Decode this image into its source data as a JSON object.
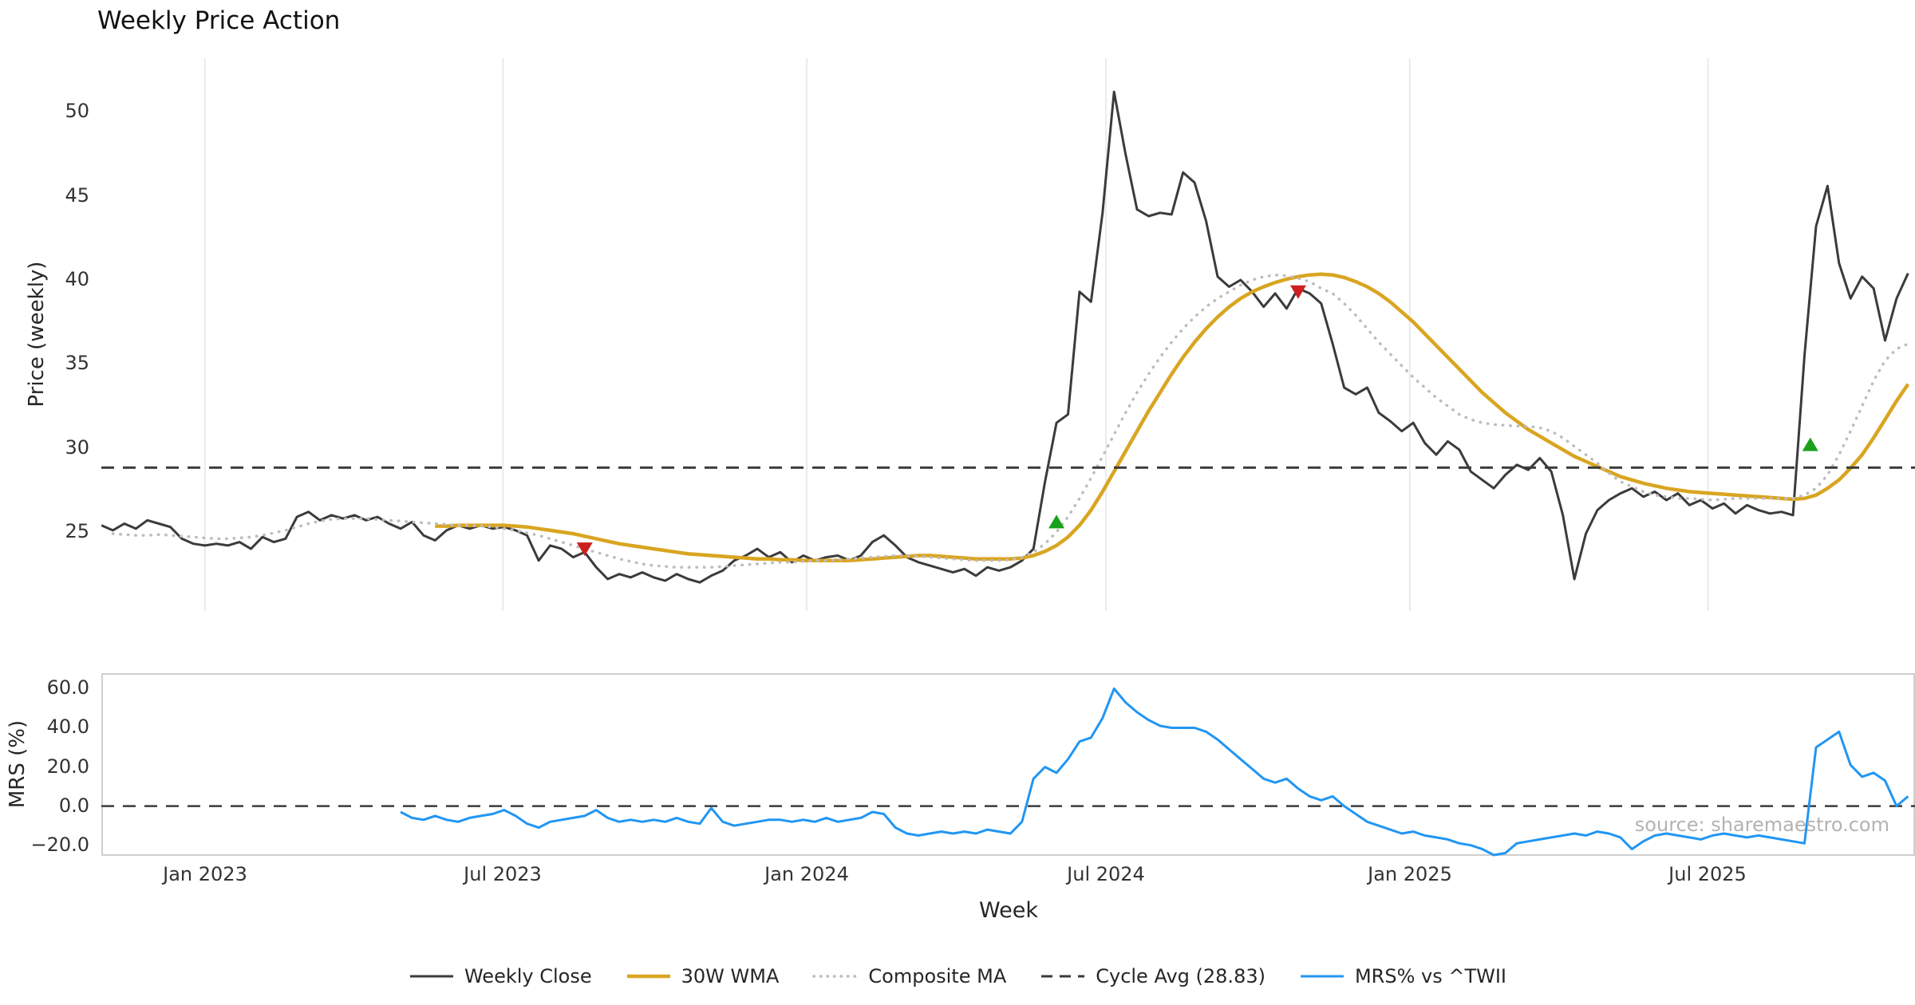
{
  "title": "Weekly Price Action",
  "watermark": "source: sharemaestro.com",
  "colors": {
    "close": "#3b3b3b",
    "wma": "#d9a521",
    "composite": "#bdbdbd",
    "cycle": "#3a3a3a",
    "mrs": "#2196f3",
    "buy": "#18a118",
    "sell": "#cc2020",
    "grid": "#ebebeb",
    "spine": "#cfcfcf",
    "text": "#262626",
    "tick_text": "#333333",
    "watermark_color": "#b3b3b3"
  },
  "chart_data": {
    "type": "line",
    "title": "Weekly Price Action",
    "xlabel": "Week",
    "x": {
      "week_range": [
        0,
        157.6
      ],
      "ticks": [
        {
          "week": 9,
          "label": "Jan 2023"
        },
        {
          "week": 34.9,
          "label": "Jul 2023"
        },
        {
          "week": 61.3,
          "label": "Jan 2024"
        },
        {
          "week": 87.3,
          "label": "Jul 2024"
        },
        {
          "week": 113.7,
          "label": "Jan 2025"
        },
        {
          "week": 139.6,
          "label": "Jul 2025"
        }
      ]
    },
    "panels": [
      {
        "name": "price",
        "ylabel": "Price (weekly)",
        "ylim": [
          20.3,
          53.2
        ],
        "yticks": [
          {
            "v": 25,
            "label": "25"
          },
          {
            "v": 30,
            "label": "30"
          },
          {
            "v": 35,
            "label": "35"
          },
          {
            "v": 40,
            "label": "40"
          },
          {
            "v": 45,
            "label": "45"
          },
          {
            "v": 50,
            "label": "50"
          }
        ],
        "series": [
          {
            "key": "weekly-close",
            "name": "Weekly Close",
            "color_key": "close",
            "start_week": 0,
            "values": [
              25.4,
              25.1,
              25.5,
              25.2,
              25.7,
              25.5,
              25.3,
              24.6,
              24.3,
              24.2,
              24.3,
              24.2,
              24.4,
              24.0,
              24.7,
              24.4,
              24.6,
              25.9,
              26.2,
              25.7,
              26.0,
              25.8,
              26.0,
              25.7,
              25.9,
              25.5,
              25.2,
              25.6,
              24.8,
              24.5,
              25.1,
              25.4,
              25.2,
              25.4,
              25.2,
              25.3,
              25.1,
              24.8,
              23.3,
              24.2,
              24.0,
              23.5,
              23.8,
              22.9,
              22.2,
              22.5,
              22.3,
              22.6,
              22.3,
              22.1,
              22.5,
              22.2,
              22.0,
              22.4,
              22.7,
              23.3,
              23.6,
              24.0,
              23.5,
              23.8,
              23.2,
              23.6,
              23.3,
              23.5,
              23.6,
              23.3,
              23.6,
              24.4,
              24.8,
              24.2,
              23.5,
              23.2,
              23.0,
              22.8,
              22.6,
              22.8,
              22.4,
              22.9,
              22.7,
              22.9,
              23.3,
              24.0,
              28.0,
              31.5,
              32.0,
              39.3,
              38.7,
              44.0,
              51.2,
              47.5,
              44.2,
              43.8,
              44.0,
              43.9,
              46.4,
              45.8,
              43.5,
              40.2,
              39.6,
              40.0,
              39.3,
              38.4,
              39.2,
              38.3,
              39.5,
              39.2,
              38.6,
              36.2,
              33.6,
              33.2,
              33.6,
              32.1,
              31.6,
              31.0,
              31.5,
              30.3,
              29.6,
              30.4,
              29.9,
              28.6,
              28.1,
              27.6,
              28.4,
              29.0,
              28.7,
              29.4,
              28.6,
              26.0,
              22.2,
              24.9,
              26.3,
              26.9,
              27.3,
              27.6,
              27.1,
              27.4,
              26.9,
              27.3,
              26.6,
              26.9,
              26.4,
              26.7,
              26.1,
              26.6,
              26.3,
              26.1,
              26.2,
              26.0,
              35.5,
              43.2,
              45.6,
              41.0,
              38.9,
              40.2,
              39.5,
              36.4,
              38.9,
              40.4
            ]
          },
          {
            "key": "wma-30w",
            "name": "30W WMA",
            "color_key": "wma",
            "start_week": 29,
            "values": [
              25.35,
              25.35,
              25.4,
              25.4,
              25.4,
              25.4,
              25.4,
              25.35,
              25.3,
              25.2,
              25.1,
              25.0,
              24.9,
              24.75,
              24.6,
              24.45,
              24.3,
              24.2,
              24.1,
              24.0,
              23.9,
              23.8,
              23.7,
              23.65,
              23.6,
              23.55,
              23.5,
              23.45,
              23.4,
              23.4,
              23.35,
              23.35,
              23.3,
              23.3,
              23.3,
              23.3,
              23.3,
              23.35,
              23.4,
              23.45,
              23.5,
              23.55,
              23.6,
              23.6,
              23.55,
              23.5,
              23.45,
              23.4,
              23.4,
              23.4,
              23.4,
              23.45,
              23.6,
              23.85,
              24.2,
              24.7,
              25.4,
              26.3,
              27.4,
              28.6,
              29.8,
              31.0,
              32.2,
              33.3,
              34.4,
              35.4,
              36.3,
              37.1,
              37.8,
              38.4,
              38.9,
              39.3,
              39.6,
              39.85,
              40.05,
              40.2,
              40.3,
              40.35,
              40.3,
              40.15,
              39.9,
              39.6,
              39.2,
              38.7,
              38.1,
              37.5,
              36.8,
              36.1,
              35.4,
              34.7,
              34.0,
              33.3,
              32.7,
              32.1,
              31.6,
              31.1,
              30.7,
              30.3,
              29.9,
              29.5,
              29.2,
              28.9,
              28.6,
              28.3,
              28.1,
              27.9,
              27.75,
              27.6,
              27.5,
              27.4,
              27.35,
              27.3,
              27.25,
              27.2,
              27.15,
              27.1,
              27.05,
              27.0,
              26.95,
              27.0,
              27.2,
              27.6,
              28.1,
              28.8,
              29.6,
              30.6,
              31.7,
              32.8,
              33.8
            ]
          },
          {
            "key": "composite-ma",
            "name": "Composite MA",
            "color_key": "composite",
            "dash": "dotted",
            "start_week": 1,
            "values": [
              24.9,
              24.85,
              24.8,
              24.8,
              24.85,
              24.8,
              24.75,
              24.7,
              24.65,
              24.6,
              24.6,
              24.65,
              24.7,
              24.8,
              24.95,
              25.1,
              25.3,
              25.5,
              25.65,
              25.75,
              25.8,
              25.8,
              25.8,
              25.75,
              25.7,
              25.65,
              25.6,
              25.55,
              25.5,
              25.45,
              25.4,
              25.4,
              25.35,
              25.3,
              25.2,
              25.1,
              24.95,
              24.8,
              24.6,
              24.4,
              24.2,
              24.0,
              23.8,
              23.6,
              23.4,
              23.25,
              23.1,
              23.0,
              22.95,
              22.9,
              22.9,
              22.9,
              22.9,
              22.95,
              23.0,
              23.05,
              23.1,
              23.15,
              23.2,
              23.2,
              23.25,
              23.3,
              23.3,
              23.35,
              23.4,
              23.45,
              23.5,
              23.55,
              23.6,
              23.6,
              23.55,
              23.5,
              23.45,
              23.4,
              23.35,
              23.3,
              23.3,
              23.3,
              23.35,
              23.5,
              23.8,
              24.3,
              25.0,
              25.9,
              27.0,
              28.2,
              29.5,
              30.8,
              32.1,
              33.3,
              34.4,
              35.4,
              36.3,
              37.1,
              37.8,
              38.4,
              38.9,
              39.3,
              39.7,
              40.0,
              40.2,
              40.3,
              40.25,
              40.1,
              39.9,
              39.5,
              39.2,
              38.6,
              37.9,
              37.1,
              36.3,
              35.6,
              34.9,
              34.2,
              33.6,
              33.0,
              32.5,
              32.0,
              31.7,
              31.5,
              31.4,
              31.35,
              31.3,
              31.3,
              31.2,
              31.0,
              30.6,
              30.1,
              29.6,
              29.1,
              28.5,
              28.0,
              27.7,
              27.4,
              27.2,
              27.1,
              27.0,
              27.0,
              26.95,
              26.9,
              26.95,
              27.0,
              27.0,
              27.0,
              27.0,
              27.0,
              27.0,
              27.2,
              27.6,
              28.4,
              29.6,
              31.0,
              32.5,
              34.0,
              35.2,
              35.9,
              36.2
            ]
          },
          {
            "key": "cycle-avg",
            "name": "Cycle Avg (28.83)",
            "color_key": "cycle",
            "dash": "dashed",
            "const_value": 28.83
          }
        ],
        "signals": [
          {
            "type": "sell",
            "week": 42,
            "value": 24.0
          },
          {
            "type": "buy",
            "week": 83,
            "value": 25.6
          },
          {
            "type": "sell",
            "week": 104,
            "value": 39.3
          },
          {
            "type": "buy",
            "week": 148.5,
            "value": 30.2
          }
        ]
      },
      {
        "name": "mrs",
        "ylabel": "MRS (%)",
        "ylim": [
          -25,
          67.5
        ],
        "zero_line": 0,
        "yticks": [
          {
            "v": 60,
            "label": "60.0"
          },
          {
            "v": 40,
            "label": "40.0"
          },
          {
            "v": 20,
            "label": "20.0"
          },
          {
            "v": 0,
            "label": "0.0"
          },
          {
            "v": -20,
            "label": "−20.0"
          }
        ],
        "series": [
          {
            "key": "mrs",
            "name": "MRS% vs ^TWII",
            "color_key": "mrs",
            "start_week": 26,
            "values": [
              -3,
              -6,
              -7,
              -5,
              -7,
              -8,
              -6,
              -5,
              -4,
              -2,
              -5,
              -9,
              -11,
              -8,
              -7,
              -6,
              -5,
              -2,
              -6,
              -8,
              -7,
              -8,
              -7,
              -8,
              -6,
              -8,
              -9,
              -1,
              -8,
              -10,
              -9,
              -8,
              -7,
              -7,
              -8,
              -7,
              -8,
              -6,
              -8,
              -7,
              -6,
              -3,
              -4,
              -11,
              -14,
              -15,
              -14,
              -13,
              -14,
              -13,
              -14,
              -12,
              -13,
              -14,
              -8,
              14,
              20,
              17,
              24,
              33,
              35,
              45,
              60,
              53,
              48,
              44,
              41,
              40,
              40,
              40,
              38,
              34,
              29,
              24,
              19,
              14,
              12,
              14,
              9,
              5,
              3,
              5,
              0,
              -4,
              -8,
              -10,
              -12,
              -14,
              -13,
              -15,
              -16,
              -17,
              -19,
              -20,
              -22,
              -25,
              -24,
              -19,
              -18,
              -17,
              -16,
              -15,
              -14,
              -15,
              -13,
              -14,
              -16,
              -22,
              -18,
              -15,
              -14,
              -15,
              -16,
              -17,
              -15,
              -14,
              -15,
              -16,
              -15,
              -16,
              -17,
              -18,
              -19,
              30,
              34,
              38,
              21,
              15,
              17,
              13,
              0,
              5
            ]
          }
        ]
      }
    ],
    "legend": [
      {
        "key": "weekly-close",
        "label": "Weekly Close",
        "color_key": "close",
        "style": "solid"
      },
      {
        "key": "wma-30w",
        "label": "30W WMA",
        "color_key": "wma",
        "style": "solid"
      },
      {
        "key": "composite-ma",
        "label": "Composite MA",
        "color_key": "composite",
        "style": "dotted"
      },
      {
        "key": "cycle-avg",
        "label": "Cycle Avg (28.83)",
        "color_key": "cycle",
        "style": "dashed"
      },
      {
        "key": "mrs",
        "label": "MRS% vs ^TWII",
        "color_key": "mrs",
        "style": "solid"
      }
    ]
  }
}
